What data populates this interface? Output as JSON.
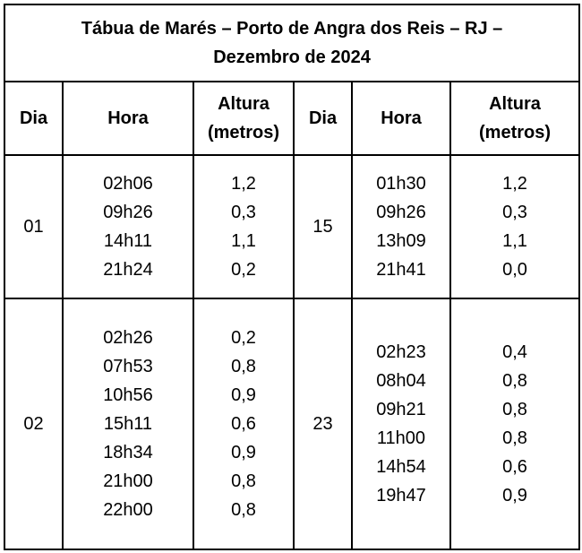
{
  "title": {
    "line1": "Tábua de Marés – Porto de Angra dos Reis – RJ –",
    "line2": "Dezembro de 2024"
  },
  "headers": {
    "dia": "Dia",
    "hora": "Hora",
    "altura_line1": "Altura",
    "altura_line2": "(metros)"
  },
  "rows": [
    {
      "left": {
        "dia": "01",
        "horas": [
          "02h06",
          "09h26",
          "14h11",
          "21h24"
        ],
        "alturas": [
          "1,2",
          "0,3",
          "1,1",
          "0,2"
        ]
      },
      "right": {
        "dia": "15",
        "horas": [
          "01h30",
          "09h26",
          "13h09",
          "21h41"
        ],
        "alturas": [
          "1,2",
          "0,3",
          "1,1",
          "0,0"
        ]
      }
    },
    {
      "left": {
        "dia": "02",
        "horas": [
          "02h26",
          "07h53",
          "10h56",
          "15h11",
          "18h34",
          "21h00",
          "22h00"
        ],
        "alturas": [
          "0,2",
          "0,8",
          "0,9",
          "0,6",
          "0,9",
          "0,8",
          "0,8"
        ]
      },
      "right": {
        "dia": "23",
        "horas": [
          "02h23",
          "08h04",
          "09h21",
          "11h00",
          "14h54",
          "19h47"
        ],
        "alturas": [
          "0,4",
          "0,8",
          "0,8",
          "0,8",
          "0,6",
          "0,9"
        ]
      }
    }
  ]
}
